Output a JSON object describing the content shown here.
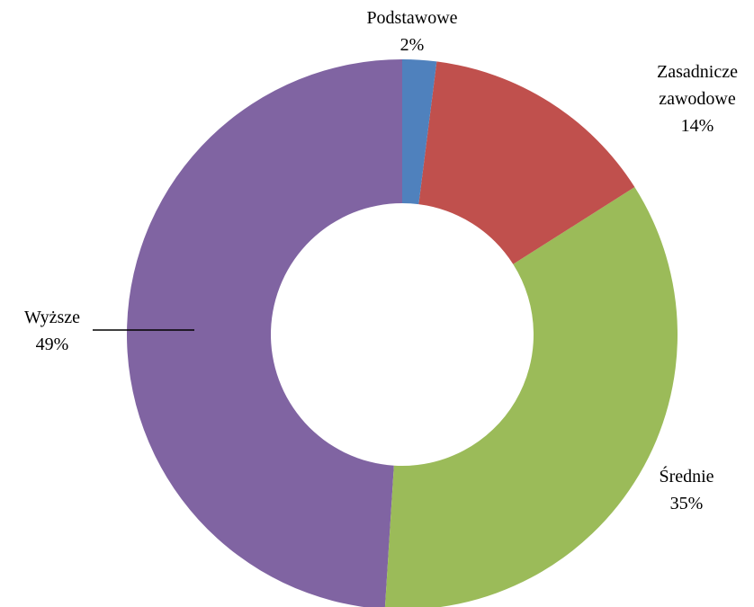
{
  "chart_data": {
    "type": "donut",
    "categories": [
      "Podstawowe",
      "Zasadnicze zawodowe",
      "Średnie",
      "Wyższe"
    ],
    "values": [
      2,
      14,
      35,
      49
    ],
    "value_labels": [
      "2%",
      "14%",
      "35%",
      "49%"
    ],
    "colors": [
      "#4f81bd",
      "#c0504d",
      "#9bbb59",
      "#8064a2"
    ]
  }
}
